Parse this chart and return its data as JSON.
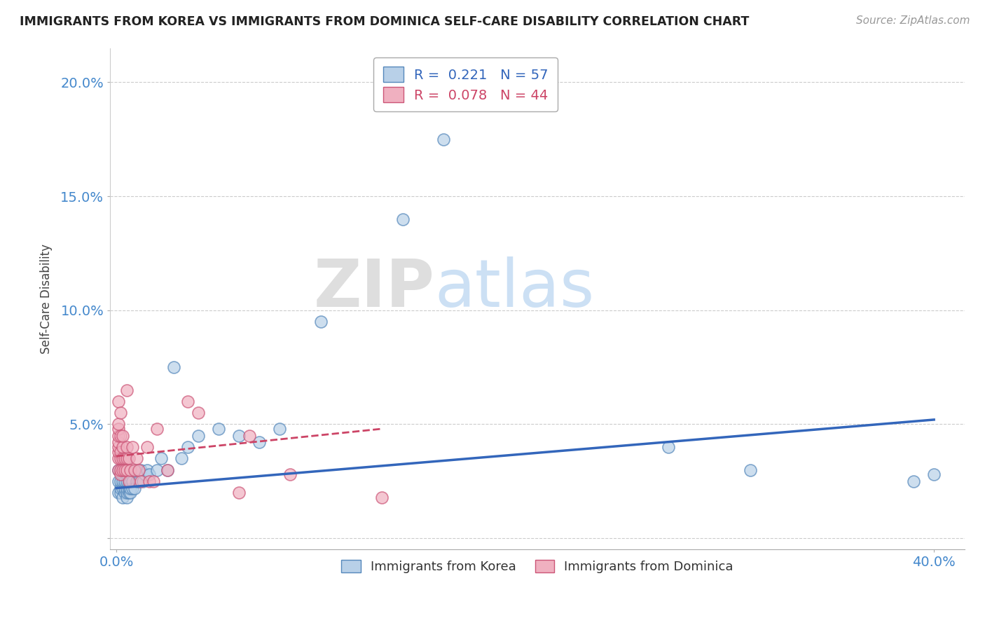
{
  "title": "IMMIGRANTS FROM KOREA VS IMMIGRANTS FROM DOMINICA SELF-CARE DISABILITY CORRELATION CHART",
  "source": "Source: ZipAtlas.com",
  "ylabel": "Self-Care Disability",
  "xlim": [
    -0.003,
    0.415
  ],
  "ylim": [
    -0.005,
    0.215
  ],
  "xticks": [
    0.0,
    0.4
  ],
  "xtick_labels": [
    "0.0%",
    "40.0%"
  ],
  "yticks": [
    0.0,
    0.05,
    0.1,
    0.15,
    0.2
  ],
  "ytick_labels": [
    "",
    "5.0%",
    "10.0%",
    "15.0%",
    "20.0%"
  ],
  "korea_color": "#b8d0e8",
  "korea_edge": "#5588bb",
  "dominica_color": "#f0b0c0",
  "dominica_edge": "#cc5577",
  "trend_korea_color": "#3366bb",
  "trend_dominica_color": "#cc4466",
  "legend_korea_r": "R =  0.221",
  "legend_korea_n": "N = 57",
  "legend_dominica_r": "R =  0.078",
  "legend_dominica_n": "N = 44",
  "watermark_zip": "ZIP",
  "watermark_atlas": "atlas",
  "korea_x": [
    0.001,
    0.001,
    0.001,
    0.002,
    0.002,
    0.002,
    0.002,
    0.003,
    0.003,
    0.003,
    0.003,
    0.003,
    0.004,
    0.004,
    0.004,
    0.004,
    0.005,
    0.005,
    0.005,
    0.005,
    0.005,
    0.005,
    0.006,
    0.006,
    0.006,
    0.007,
    0.007,
    0.007,
    0.008,
    0.008,
    0.009,
    0.01,
    0.01,
    0.011,
    0.012,
    0.013,
    0.014,
    0.015,
    0.016,
    0.02,
    0.022,
    0.025,
    0.028,
    0.032,
    0.035,
    0.04,
    0.05,
    0.06,
    0.07,
    0.08,
    0.1,
    0.14,
    0.16,
    0.27,
    0.31,
    0.39,
    0.4
  ],
  "korea_y": [
    0.02,
    0.025,
    0.03,
    0.02,
    0.022,
    0.025,
    0.03,
    0.018,
    0.022,
    0.025,
    0.028,
    0.03,
    0.02,
    0.022,
    0.025,
    0.03,
    0.018,
    0.02,
    0.022,
    0.025,
    0.028,
    0.035,
    0.02,
    0.022,
    0.025,
    0.02,
    0.022,
    0.025,
    0.022,
    0.025,
    0.022,
    0.025,
    0.03,
    0.025,
    0.03,
    0.025,
    0.028,
    0.03,
    0.028,
    0.03,
    0.035,
    0.03,
    0.075,
    0.035,
    0.04,
    0.045,
    0.048,
    0.045,
    0.042,
    0.048,
    0.095,
    0.14,
    0.175,
    0.04,
    0.03,
    0.025,
    0.028
  ],
  "dominica_x": [
    0.001,
    0.001,
    0.001,
    0.001,
    0.001,
    0.001,
    0.001,
    0.001,
    0.001,
    0.002,
    0.002,
    0.002,
    0.002,
    0.002,
    0.002,
    0.003,
    0.003,
    0.003,
    0.003,
    0.004,
    0.004,
    0.005,
    0.005,
    0.005,
    0.005,
    0.006,
    0.006,
    0.007,
    0.008,
    0.009,
    0.01,
    0.011,
    0.012,
    0.015,
    0.016,
    0.018,
    0.02,
    0.025,
    0.035,
    0.04,
    0.06,
    0.065,
    0.085,
    0.13
  ],
  "dominica_y": [
    0.03,
    0.035,
    0.038,
    0.04,
    0.042,
    0.045,
    0.048,
    0.05,
    0.06,
    0.028,
    0.03,
    0.035,
    0.038,
    0.045,
    0.055,
    0.03,
    0.035,
    0.04,
    0.045,
    0.03,
    0.035,
    0.03,
    0.035,
    0.04,
    0.065,
    0.025,
    0.035,
    0.03,
    0.04,
    0.03,
    0.035,
    0.03,
    0.025,
    0.04,
    0.025,
    0.025,
    0.048,
    0.03,
    0.06,
    0.055,
    0.02,
    0.045,
    0.028,
    0.018
  ],
  "korea_trend_x0": 0.0,
  "korea_trend_y0": 0.022,
  "korea_trend_x1": 0.4,
  "korea_trend_y1": 0.052,
  "dominica_trend_x0": 0.0,
  "dominica_trend_y0": 0.036,
  "dominica_trend_x1": 0.13,
  "dominica_trend_y1": 0.048
}
